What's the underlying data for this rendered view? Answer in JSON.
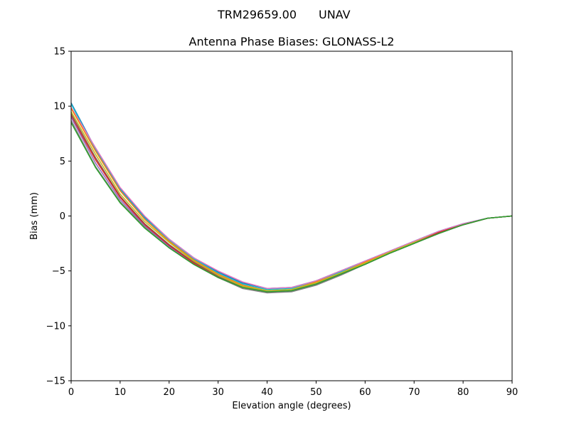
{
  "figure": {
    "suptitle_left": "TRM29659.00",
    "suptitle_right": "UNAV"
  },
  "chart_data": {
    "type": "line",
    "title": "Antenna Phase Biases: GLONASS-L2",
    "xlabel": "Elevation angle (degrees)",
    "ylabel": "Bias (mm)",
    "xlim": [
      0,
      90
    ],
    "ylim": [
      -15,
      15
    ],
    "xticks": [
      0,
      10,
      20,
      30,
      40,
      50,
      60,
      70,
      80,
      90
    ],
    "yticks": [
      -15,
      -10,
      -5,
      0,
      5,
      10,
      15
    ],
    "ytick_labels": [
      "−15",
      "−10",
      "−5",
      "0",
      "5",
      "10",
      "15"
    ],
    "xtick_labels": [
      "0",
      "10",
      "20",
      "30",
      "40",
      "50",
      "60",
      "70",
      "80",
      "90"
    ],
    "grid": false,
    "legend": "none",
    "x": [
      0,
      5,
      10,
      15,
      20,
      25,
      30,
      35,
      40,
      45,
      50,
      55,
      60,
      65,
      70,
      75,
      80,
      85,
      90
    ],
    "series": [
      {
        "color": "#1f77b4",
        "values": [
          10.3,
          6.1,
          2.5,
          -0.1,
          -2.1,
          -3.8,
          -5.1,
          -6.1,
          -6.6,
          -6.5,
          -5.9,
          -5.0,
          -4.1,
          -3.2,
          -2.3,
          -1.4,
          -0.7,
          -0.2,
          0.0
        ]
      },
      {
        "color": "#17becf",
        "values": [
          10.2,
          6.0,
          2.4,
          -0.2,
          -2.2,
          -3.9,
          -5.2,
          -6.2,
          -6.7,
          -6.6,
          -5.9,
          -5.1,
          -4.1,
          -3.2,
          -2.3,
          -1.4,
          -0.7,
          -0.2,
          0.0
        ]
      },
      {
        "color": "#e377c2",
        "values": [
          9.9,
          6.2,
          2.6,
          0.0,
          -2.1,
          -3.8,
          -5.0,
          -6.0,
          -6.6,
          -6.5,
          -5.9,
          -5.0,
          -4.1,
          -3.2,
          -2.3,
          -1.4,
          -0.7,
          -0.2,
          0.0
        ]
      },
      {
        "color": "#ff7f0e",
        "values": [
          9.8,
          5.9,
          2.3,
          -0.3,
          -2.3,
          -4.0,
          -5.3,
          -6.3,
          -6.8,
          -6.7,
          -6.0,
          -5.2,
          -4.2,
          -3.3,
          -2.4,
          -1.5,
          -0.8,
          -0.2,
          0.0
        ]
      },
      {
        "color": "#bcbd22",
        "values": [
          9.5,
          5.6,
          2.0,
          -0.5,
          -2.4,
          -4.1,
          -5.4,
          -6.4,
          -6.8,
          -6.7,
          -6.1,
          -5.2,
          -4.3,
          -3.3,
          -2.4,
          -1.5,
          -0.8,
          -0.2,
          0.0
        ]
      },
      {
        "color": "#8c564b",
        "values": [
          9.3,
          5.3,
          1.8,
          -0.7,
          -2.6,
          -4.2,
          -5.5,
          -6.5,
          -6.9,
          -6.8,
          -6.2,
          -5.3,
          -4.4,
          -3.4,
          -2.5,
          -1.5,
          -0.8,
          -0.2,
          0.0
        ]
      },
      {
        "color": "#d62728",
        "values": [
          9.1,
          5.1,
          1.7,
          -0.8,
          -2.7,
          -4.3,
          -5.6,
          -6.5,
          -6.9,
          -6.8,
          -6.2,
          -5.3,
          -4.4,
          -3.4,
          -2.5,
          -1.5,
          -0.8,
          -0.2,
          0.0
        ]
      },
      {
        "color": "#9467bd",
        "values": [
          9.0,
          4.8,
          1.5,
          -0.9,
          -2.8,
          -4.4,
          -5.6,
          -6.5,
          -6.9,
          -6.8,
          -6.2,
          -5.3,
          -4.4,
          -3.4,
          -2.5,
          -1.6,
          -0.8,
          -0.2,
          0.0
        ]
      },
      {
        "color": "#7f7f7f",
        "values": [
          8.7,
          4.5,
          1.3,
          -1.0,
          -2.9,
          -4.4,
          -5.6,
          -6.6,
          -7.0,
          -6.9,
          -6.3,
          -5.4,
          -4.4,
          -3.4,
          -2.5,
          -1.6,
          -0.8,
          -0.2,
          0.0
        ]
      },
      {
        "color": "#2ca02c",
        "values": [
          8.5,
          4.4,
          1.2,
          -1.1,
          -2.9,
          -4.4,
          -5.6,
          -6.5,
          -6.9,
          -6.8,
          -6.2,
          -5.3,
          -4.4,
          -3.4,
          -2.5,
          -1.6,
          -0.8,
          -0.2,
          0.0
        ]
      }
    ]
  }
}
